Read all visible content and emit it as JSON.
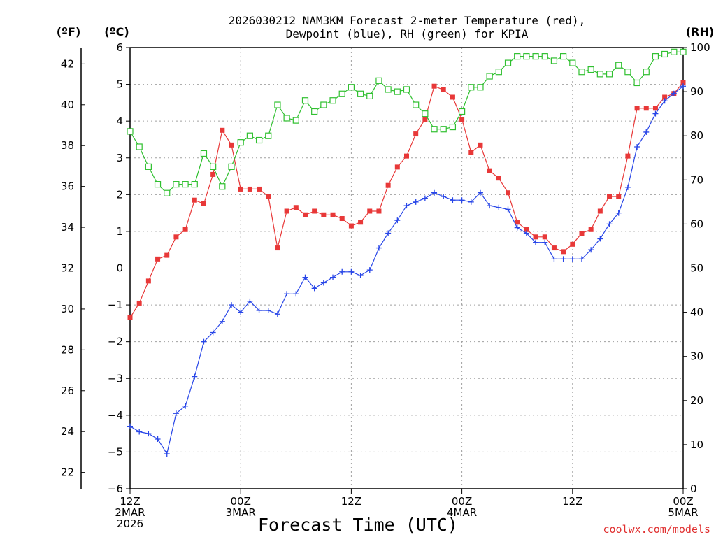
{
  "title_line1": "2026030212 NAM3KM Forecast 2-meter Temperature (red),",
  "title_line2": "Dewpoint (blue), RH (green) for KPIA",
  "unit_f": "(ºF)",
  "unit_c": "(ºC)",
  "unit_rh": "(RH)",
  "xlabel": "Forecast Time (UTC)",
  "credit": "coolwx.com/models",
  "chart_data": {
    "type": "line",
    "title": "2026030212 NAM3KM Forecast 2-meter Temperature (red), Dewpoint (blue), RH (green) for KPIA",
    "xlabel": "Forecast Time (UTC)",
    "x_hours": [
      0,
      1,
      2,
      3,
      4,
      5,
      6,
      7,
      8,
      9,
      10,
      11,
      12,
      13,
      14,
      15,
      16,
      17,
      18,
      19,
      20,
      21,
      22,
      23,
      24,
      25,
      26,
      27,
      28,
      29,
      30,
      31,
      32,
      33,
      34,
      35,
      36,
      37,
      38,
      39,
      40,
      41,
      42,
      43,
      44,
      45,
      46,
      47,
      48,
      49,
      50,
      51,
      52,
      53,
      54,
      55,
      56,
      57,
      58,
      59,
      60
    ],
    "x_ticks": [
      {
        "hour": 0,
        "lines": [
          "12Z",
          "2MAR",
          "2026"
        ]
      },
      {
        "hour": 12,
        "lines": [
          "00Z",
          "3MAR"
        ]
      },
      {
        "hour": 24,
        "lines": [
          "12Z"
        ]
      },
      {
        "hour": 36,
        "lines": [
          "00Z",
          "4MAR"
        ]
      },
      {
        "hour": 48,
        "lines": [
          "12Z"
        ]
      },
      {
        "hour": 60,
        "lines": [
          "00Z",
          "5MAR"
        ]
      }
    ],
    "left_axis_c": {
      "label": "(ºC)",
      "ylim": [
        -6,
        6
      ],
      "ticks": [
        -6,
        -5,
        -4,
        -3,
        -2,
        -1,
        0,
        1,
        2,
        3,
        4,
        5,
        6
      ]
    },
    "left_axis_f": {
      "label": "(ºF)",
      "ticks": [
        22,
        24,
        26,
        28,
        30,
        32,
        34,
        36,
        38,
        40,
        42
      ]
    },
    "right_axis_rh": {
      "label": "(RH)",
      "ylim": [
        0,
        100
      ],
      "ticks": [
        0,
        10,
        20,
        30,
        40,
        50,
        60,
        70,
        80,
        90,
        100
      ]
    },
    "series": [
      {
        "name": "2-meter Temperature",
        "color": "#e83838",
        "marker": "filled-square",
        "axis": "C",
        "values": [
          -1.35,
          -0.95,
          -0.35,
          0.25,
          0.35,
          0.85,
          1.05,
          1.85,
          1.75,
          2.55,
          3.75,
          3.35,
          2.15,
          2.15,
          2.15,
          1.95,
          0.55,
          1.55,
          1.65,
          1.45,
          1.55,
          1.45,
          1.45,
          1.35,
          1.15,
          1.25,
          1.55,
          1.55,
          2.25,
          2.75,
          3.05,
          3.65,
          4.05,
          4.95,
          4.85,
          4.65,
          4.05,
          3.15,
          3.35,
          2.65,
          2.45,
          2.05,
          1.25,
          1.05,
          0.85,
          0.85,
          0.55,
          0.45,
          0.65,
          0.95,
          1.05,
          1.55,
          1.95,
          1.95,
          3.05,
          4.35,
          4.35,
          4.35,
          4.65,
          4.75,
          5.05
        ]
      },
      {
        "name": "Dewpoint",
        "color": "#2846e8",
        "marker": "plus",
        "axis": "C",
        "values": [
          -4.3,
          -4.45,
          -4.5,
          -4.65,
          -5.05,
          -3.95,
          -3.75,
          -2.95,
          -2.0,
          -1.75,
          -1.45,
          -1.0,
          -1.2,
          -0.9,
          -1.15,
          -1.15,
          -1.25,
          -0.7,
          -0.7,
          -0.25,
          -0.55,
          -0.4,
          -0.25,
          -0.1,
          -0.1,
          -0.2,
          -0.05,
          0.55,
          0.95,
          1.3,
          1.7,
          1.8,
          1.9,
          2.05,
          1.95,
          1.85,
          1.85,
          1.8,
          2.05,
          1.7,
          1.65,
          1.6,
          1.1,
          0.95,
          0.7,
          0.7,
          0.25,
          0.25,
          0.25,
          0.25,
          0.5,
          0.8,
          1.2,
          1.5,
          2.2,
          3.3,
          3.7,
          4.2,
          4.55,
          4.75,
          4.95
        ]
      },
      {
        "name": "RH",
        "color": "#30c030",
        "marker": "open-square",
        "axis": "RH",
        "values": [
          81,
          77.5,
          73,
          69,
          67,
          69,
          69,
          69,
          76,
          73,
          68.5,
          73,
          78.5,
          80,
          79,
          80,
          87,
          84,
          83.5,
          88,
          85.5,
          87,
          88,
          89.5,
          91,
          89.5,
          89,
          92.5,
          90.5,
          90,
          90.5,
          87,
          85,
          81.5,
          81.5,
          82,
          85.5,
          91,
          91,
          93.5,
          94.5,
          96.5,
          98,
          98,
          98,
          98,
          97,
          98,
          96.5,
          94.5,
          95,
          94,
          94,
          96,
          94.5,
          92,
          94.5,
          98,
          98.5,
          99,
          99
        ]
      }
    ]
  }
}
